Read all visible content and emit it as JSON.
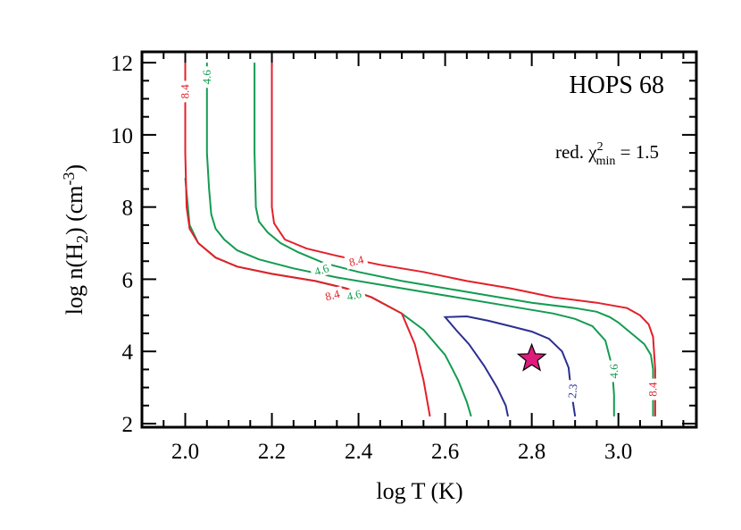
{
  "chart_data": {
    "type": "contour",
    "title": "HOPS 68",
    "xlabel": "log T (K)",
    "ylabel": "log n(H2) (cm-3)",
    "xlim": [
      1.9,
      3.18
    ],
    "ylim": [
      1.9,
      12.3
    ],
    "x_ticks": [
      2.0,
      2.2,
      2.4,
      2.6,
      2.8,
      3.0
    ],
    "y_ticks": [
      2,
      4,
      6,
      8,
      10,
      12
    ],
    "x_tick_labels": [
      "2.0",
      "2.2",
      "2.4",
      "2.6",
      "2.8",
      "3.0"
    ],
    "y_tick_labels": [
      "2",
      "4",
      "6",
      "8",
      "10",
      "12"
    ],
    "grid": false,
    "annotation": {
      "prefix": "red. χ",
      "sub": "min",
      "sup": "2",
      "suffix": " = 1.5"
    },
    "best_fit": {
      "x": 2.8,
      "y": 3.8,
      "marker": "star",
      "color": "#e0197d"
    },
    "contours": [
      {
        "level": "2.3",
        "color": "#2b2f8f",
        "labels": [
          {
            "x": 2.895,
            "y": 2.9,
            "angle": -85
          }
        ],
        "points": [
          [
            2.745,
            2.2
          ],
          [
            2.74,
            2.5
          ],
          [
            2.72,
            3.0
          ],
          [
            2.69,
            3.6
          ],
          [
            2.655,
            4.2
          ],
          [
            2.625,
            4.6
          ],
          [
            2.6,
            4.95
          ],
          [
            2.65,
            4.97
          ],
          [
            2.7,
            4.85
          ],
          [
            2.75,
            4.7
          ],
          [
            2.8,
            4.55
          ],
          [
            2.84,
            4.35
          ],
          [
            2.87,
            4.0
          ],
          [
            2.885,
            3.55
          ],
          [
            2.89,
            3.0
          ],
          [
            2.895,
            2.6
          ],
          [
            2.9,
            2.2
          ]
        ]
      },
      {
        "level": "4.6",
        "color": "#149b52",
        "labels": [
          {
            "x": 2.05,
            "y": 11.6,
            "angle": -90
          },
          {
            "x": 2.315,
            "y": 6.25,
            "angle": -18
          },
          {
            "x": 2.39,
            "y": 5.55,
            "angle": -14
          },
          {
            "x": 2.99,
            "y": 3.45,
            "angle": -90
          }
        ],
        "points": [
          [
            2.05,
            12.0
          ],
          [
            2.05,
            11.0
          ],
          [
            2.05,
            9.5
          ],
          [
            2.055,
            8.5
          ],
          [
            2.06,
            7.8
          ],
          [
            2.07,
            7.4
          ],
          [
            2.09,
            7.1
          ],
          [
            2.12,
            6.8
          ],
          [
            2.17,
            6.55
          ],
          [
            2.25,
            6.3
          ],
          [
            2.35,
            6.05
          ],
          [
            2.45,
            5.85
          ],
          [
            2.55,
            5.65
          ],
          [
            2.65,
            5.45
          ],
          [
            2.75,
            5.25
          ],
          [
            2.85,
            5.05
          ],
          [
            2.9,
            4.9
          ],
          [
            2.94,
            4.7
          ],
          [
            2.97,
            4.3
          ],
          [
            2.985,
            3.6
          ],
          [
            2.99,
            2.8
          ],
          [
            2.99,
            2.2
          ]
        ],
        "points2": [
          [
            2.16,
            12.0
          ],
          [
            2.16,
            11.0
          ],
          [
            2.16,
            9.5
          ],
          [
            2.163,
            8.0
          ],
          [
            2.17,
            7.6
          ],
          [
            2.19,
            7.3
          ],
          [
            2.22,
            7.0
          ],
          [
            2.26,
            6.75
          ],
          [
            2.32,
            6.45
          ],
          [
            2.4,
            6.2
          ],
          [
            2.5,
            5.95
          ],
          [
            2.6,
            5.75
          ],
          [
            2.7,
            5.55
          ],
          [
            2.8,
            5.35
          ],
          [
            2.9,
            5.2
          ],
          [
            2.95,
            5.1
          ],
          [
            2.98,
            4.95
          ],
          [
            3.0,
            4.8
          ],
          [
            3.02,
            4.6
          ],
          [
            3.04,
            4.4
          ],
          [
            3.06,
            4.2
          ],
          [
            3.075,
            3.9
          ],
          [
            3.08,
            3.5
          ],
          [
            3.08,
            2.8
          ],
          [
            3.08,
            2.2
          ]
        ],
        "points3": [
          [
            2.0,
            8.8
          ],
          [
            2.01,
            7.5
          ],
          [
            2.03,
            7.0
          ],
          [
            2.07,
            6.6
          ],
          [
            2.12,
            6.35
          ],
          [
            2.2,
            6.15
          ],
          [
            2.3,
            5.95
          ],
          [
            2.37,
            5.75
          ],
          [
            2.43,
            5.5
          ],
          [
            2.5,
            5.05
          ],
          [
            2.55,
            4.6
          ],
          [
            2.6,
            3.9
          ],
          [
            2.63,
            3.2
          ],
          [
            2.65,
            2.6
          ],
          [
            2.66,
            2.2
          ]
        ]
      },
      {
        "level": "8.4",
        "color": "#e3202a",
        "labels": [
          {
            "x": 2.0,
            "y": 11.2,
            "angle": -90
          },
          {
            "x": 2.395,
            "y": 6.5,
            "angle": -14
          },
          {
            "x": 2.34,
            "y": 5.55,
            "angle": -14
          },
          {
            "x": 3.08,
            "y": 2.95,
            "angle": -90
          }
        ],
        "points": [
          [
            2.0,
            12.0
          ],
          [
            2.0,
            11.0
          ],
          [
            2.0,
            9.5
          ],
          [
            2.003,
            8.0
          ],
          [
            2.01,
            7.4
          ],
          [
            2.03,
            7.0
          ],
          [
            2.07,
            6.6
          ],
          [
            2.12,
            6.35
          ],
          [
            2.2,
            6.15
          ],
          [
            2.3,
            5.95
          ],
          [
            2.37,
            5.75
          ],
          [
            2.43,
            5.5
          ],
          [
            2.5,
            5.05
          ],
          [
            2.53,
            4.2
          ],
          [
            2.55,
            3.2
          ],
          [
            2.565,
            2.2
          ]
        ],
        "points2": [
          [
            2.2,
            12.0
          ],
          [
            2.2,
            11.0
          ],
          [
            2.2,
            9.5
          ],
          [
            2.2,
            8.0
          ],
          [
            2.205,
            7.55
          ],
          [
            2.23,
            7.1
          ],
          [
            2.28,
            6.85
          ],
          [
            2.35,
            6.65
          ],
          [
            2.45,
            6.4
          ],
          [
            2.55,
            6.2
          ],
          [
            2.65,
            5.95
          ],
          [
            2.75,
            5.75
          ],
          [
            2.85,
            5.5
          ],
          [
            2.95,
            5.35
          ],
          [
            3.02,
            5.2
          ],
          [
            3.05,
            5.0
          ],
          [
            3.07,
            4.75
          ],
          [
            3.08,
            4.4
          ],
          [
            3.085,
            3.5
          ],
          [
            3.085,
            2.2
          ]
        ]
      }
    ]
  }
}
